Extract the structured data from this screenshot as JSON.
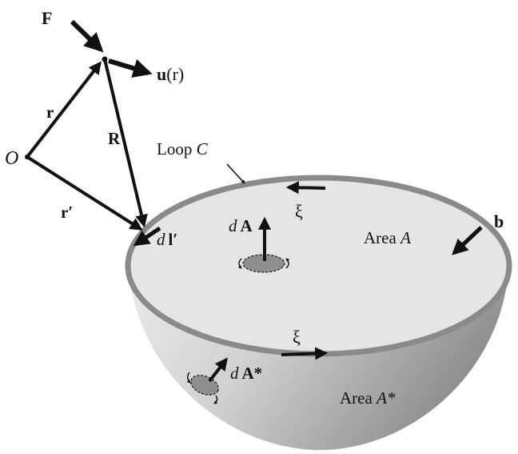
{
  "labels": {
    "force": "F",
    "field_u_main": "u",
    "field_u_arg": "(r)",
    "origin": "O",
    "vec_r": "r",
    "vec_R": "R",
    "vec_r_prime": "r′",
    "loop_label": "Loop ",
    "loop_letter": "C",
    "xi_top": "ξ",
    "xi_bottom": "ξ",
    "dA_d": "d",
    "dA_A": "A",
    "dl_d": "d",
    "dl_l": "l′",
    "area_top_text": "Area ",
    "area_top_letter": "A",
    "burgers": "b",
    "dA_star_d": "d",
    "dA_star_A": "A*",
    "area_bottom_text": "Area ",
    "area_bottom_letter": "A*"
  },
  "colors": {
    "ink": "#111111",
    "rim": "#8a8a8a",
    "top_surface": "#e4e5e5",
    "bowl_light": "#e8e8e8",
    "bowl_dark": "#8e8e8e",
    "element_fill": "#8f8f8f"
  }
}
